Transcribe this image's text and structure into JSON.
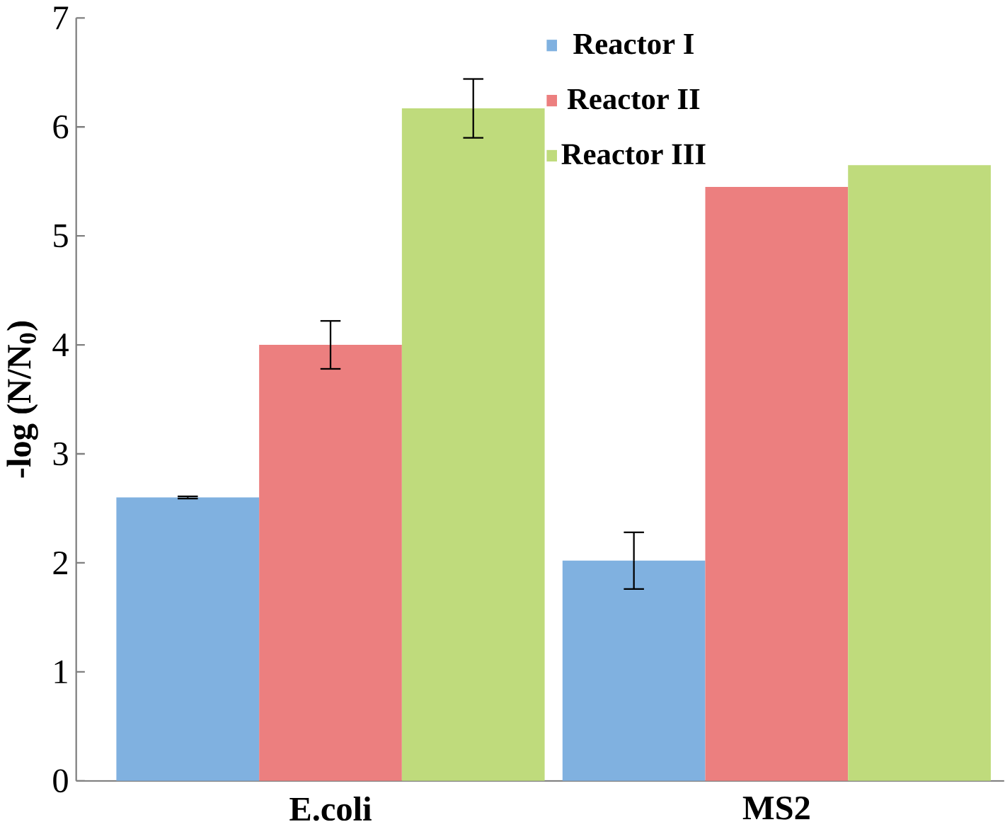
{
  "chart_data": {
    "type": "bar",
    "ylabel": "-log (N/N$_{0}$)",
    "categories": [
      "E.coli",
      "MS2"
    ],
    "series": [
      {
        "name": "Reactor I",
        "color": "#80b1e0",
        "values": [
          2.6,
          2.02
        ],
        "errors": [
          0.01,
          0.26
        ]
      },
      {
        "name": "Reactor II",
        "color": "#ec7f7f",
        "values": [
          4.0,
          5.45
        ],
        "errors": [
          0.22,
          null
        ]
      },
      {
        "name": "Reactor III",
        "color": "#bfdb7c",
        "values": [
          6.17,
          5.65
        ],
        "errors": [
          0.27,
          null
        ]
      }
    ],
    "ylim": [
      0,
      7
    ],
    "yticks": [
      0,
      1,
      2,
      3,
      4,
      5,
      6,
      7
    ],
    "legend": "top",
    "grid": false
  }
}
